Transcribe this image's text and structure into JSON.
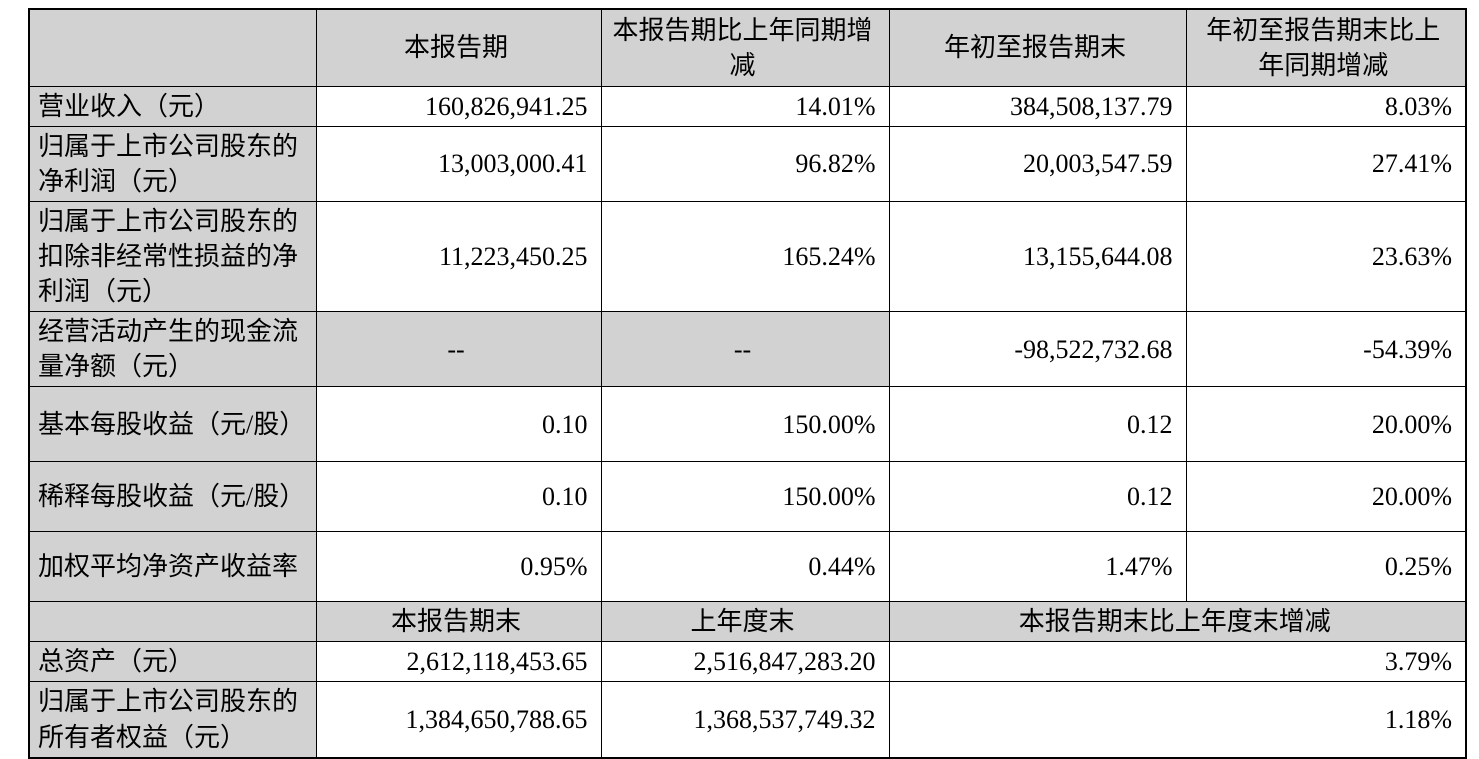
{
  "table": {
    "header1": {
      "c1": "",
      "current_period": "本报告期",
      "yoy_change": "本报告期比上年同期增减",
      "ytd": "年初至报告期末",
      "ytd_yoy_change": "年初至报告期末比上年同期增减"
    },
    "section1_rows": [
      {
        "label": "营业收入（元）",
        "current_period": "160,826,941.25",
        "yoy_change": "14.01%",
        "ytd": "384,508,137.79",
        "ytd_yoy_change": "8.03%"
      },
      {
        "label": "归属于上市公司股东的净利润（元）",
        "current_period": "13,003,000.41",
        "yoy_change": "96.82%",
        "ytd": "20,003,547.59",
        "ytd_yoy_change": "27.41%"
      },
      {
        "label": "归属于上市公司股东的扣除非经常性损益的净利润（元）",
        "current_period": "11,223,450.25",
        "yoy_change": "165.24%",
        "ytd": "13,155,644.08",
        "ytd_yoy_change": "23.63%"
      },
      {
        "label": "经营活动产生的现金流量净额（元）",
        "current_period": "--",
        "yoy_change": "--",
        "ytd": "-98,522,732.68",
        "ytd_yoy_change": "-54.39%"
      },
      {
        "label": "基本每股收益（元/股）",
        "current_period": "0.10",
        "yoy_change": "150.00%",
        "ytd": "0.12",
        "ytd_yoy_change": "20.00%"
      },
      {
        "label": "稀释每股收益（元/股）",
        "current_period": "0.10",
        "yoy_change": "150.00%",
        "ytd": "0.12",
        "ytd_yoy_change": "20.00%"
      },
      {
        "label": "加权平均净资产收益率",
        "current_period": "0.95%",
        "yoy_change": "0.44%",
        "ytd": "1.47%",
        "ytd_yoy_change": "0.25%"
      }
    ],
    "header2": {
      "c1": "",
      "end_of_period": "本报告期末",
      "end_of_prev_year": "上年度末",
      "change_vs_prev_year_end": "本报告期末比上年度末增减"
    },
    "section2_rows": [
      {
        "label": "总资产（元）",
        "end_of_period": "2,612,118,453.65",
        "end_of_prev_year": "2,516,847,283.20",
        "change": "3.79%"
      },
      {
        "label": "归属于上市公司股东的所有者权益（元）",
        "end_of_period": "1,384,650,788.65",
        "end_of_prev_year": "1,368,537,749.32",
        "change": "1.18%"
      }
    ],
    "shading_color": "#d2d2d2"
  }
}
